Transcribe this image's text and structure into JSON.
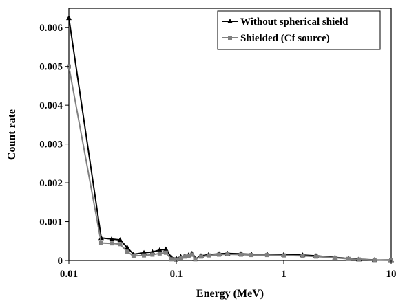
{
  "chart_data": {
    "type": "line",
    "xlabel": "Energy (MeV)",
    "ylabel": "Count rate",
    "x_scale": "log",
    "xlim": [
      0.01,
      10
    ],
    "ylim": [
      0,
      0.0065
    ],
    "x_ticks": [
      0.01,
      0.1,
      1,
      10
    ],
    "x_tick_labels": [
      "0.01",
      "0.1",
      "1",
      "10"
    ],
    "y_ticks": [
      0,
      0.001,
      0.002,
      0.003,
      0.004,
      0.005,
      0.006
    ],
    "y_tick_labels": [
      "0",
      "0.001",
      "0.002",
      "0.003",
      "0.004",
      "0.005",
      "0.006"
    ],
    "grid": false,
    "legend_position": "top-right",
    "series": [
      {
        "name": "Without spherical shield",
        "color": "#000000",
        "marker": "triangle",
        "x": [
          0.01,
          0.02,
          0.025,
          0.03,
          0.035,
          0.04,
          0.05,
          0.06,
          0.07,
          0.08,
          0.09,
          0.1,
          0.11,
          0.12,
          0.13,
          0.14,
          0.15,
          0.17,
          0.2,
          0.25,
          0.3,
          0.4,
          0.5,
          0.7,
          1,
          1.5,
          2,
          3,
          4,
          5,
          7,
          10
        ],
        "y": [
          0.00625,
          0.00058,
          0.00055,
          0.00053,
          0.00033,
          0.00016,
          0.0002,
          0.00022,
          0.00027,
          0.00029,
          8e-05,
          5e-05,
          0.0001,
          0.00012,
          0.00014,
          0.00018,
          4e-05,
          0.00012,
          0.00015,
          0.00017,
          0.00018,
          0.00017,
          0.00016,
          0.00016,
          0.00015,
          0.00014,
          0.00012,
          8e-05,
          5e-05,
          3e-05,
          1.5e-05,
          1e-05
        ]
      },
      {
        "name": "Shielded (Cf source)",
        "color": "#808080",
        "marker": "square",
        "x": [
          0.01,
          0.02,
          0.025,
          0.03,
          0.035,
          0.04,
          0.05,
          0.06,
          0.07,
          0.08,
          0.09,
          0.1,
          0.11,
          0.12,
          0.13,
          0.14,
          0.15,
          0.17,
          0.2,
          0.25,
          0.3,
          0.4,
          0.5,
          0.7,
          1,
          1.5,
          2,
          3,
          4,
          5,
          7,
          10
        ],
        "y": [
          0.005,
          0.00045,
          0.00044,
          0.00042,
          0.00022,
          0.00012,
          0.00013,
          0.00015,
          0.00018,
          0.0002,
          3e-05,
          2e-05,
          7e-05,
          0.0001,
          0.00012,
          0.00015,
          3e-05,
          0.0001,
          0.00013,
          0.00015,
          0.00016,
          0.00015,
          0.00014,
          0.00014,
          0.00013,
          0.00012,
          0.0001,
          7e-05,
          4e-05,
          2.5e-05,
          1e-05,
          5e-06
        ]
      }
    ]
  }
}
